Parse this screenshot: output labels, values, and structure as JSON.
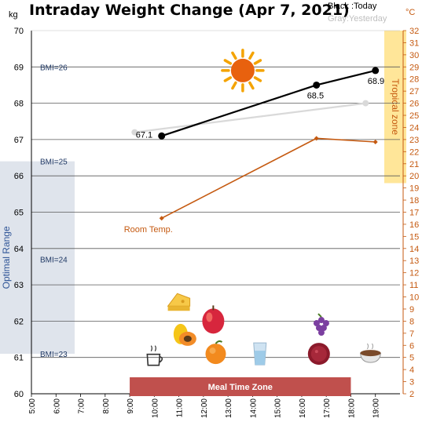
{
  "colors": {
    "today": "#000000",
    "yesterday": "#d9d9d9",
    "temperature": "#c55a11",
    "optimal_range": "#dfe4ec",
    "tropical_zone": "#ffe699",
    "meal_zone": "#c0504d",
    "bmi_text": "#1f3864"
  },
  "chart_data": {
    "type": "line",
    "title": "Intraday Weight Change (Apr 7, 2021)",
    "legend": [
      "Black :Today",
      "Gray:Yesterday"
    ],
    "legend_placement": "top-right",
    "y_unit": "kg",
    "y2_unit": "°C",
    "xlim": [
      5,
      20
    ],
    "ylim": [
      60,
      70
    ],
    "y2lim": [
      2,
      32
    ],
    "x_tick_labels": [
      "5:00",
      "6:00",
      "7:00",
      "8:00",
      "9:00",
      "10:00",
      "11:00",
      "12:00",
      "13:00",
      "14:00",
      "15:00",
      "16:00",
      "17:00",
      "18:00",
      "19:00"
    ],
    "y_ticks": [
      60,
      61,
      62,
      63,
      64,
      65,
      66,
      67,
      68,
      69,
      70
    ],
    "y2_ticks": [
      2,
      3,
      4,
      5,
      6,
      7,
      8,
      9,
      10,
      11,
      12,
      13,
      14,
      15,
      16,
      17,
      18,
      19,
      20,
      21,
      22,
      23,
      24,
      25,
      26,
      27,
      28,
      29,
      30,
      31,
      32
    ],
    "bmi_lines": [
      {
        "label": "BMI=26",
        "weight": 69.0
      },
      {
        "label": "BMI=25",
        "weight": 66.4
      },
      {
        "label": "BMI=24",
        "weight": 63.7
      },
      {
        "label": "BMI=23",
        "weight": 61.1
      }
    ],
    "series": [
      {
        "name": "Today",
        "axis": "left",
        "points": [
          {
            "x": 10.3,
            "y": 67.1,
            "label": "67.1"
          },
          {
            "x": 16.6,
            "y": 68.5,
            "label": "68.5"
          },
          {
            "x": 19.0,
            "y": 68.9,
            "label": "68.9"
          }
        ]
      },
      {
        "name": "Yesterday",
        "axis": "left",
        "points": [
          {
            "x": 9.2,
            "y": 67.2
          },
          {
            "x": 18.6,
            "y": 68.0
          }
        ]
      },
      {
        "name": "Room Temp.",
        "axis": "right",
        "points": [
          {
            "x": 10.3,
            "y": 16.5
          },
          {
            "x": 16.6,
            "y": 23.1
          },
          {
            "x": 19.0,
            "y": 22.8
          }
        ]
      }
    ],
    "zones": {
      "optimal_range": {
        "label": "Optimal Range",
        "from": 61.1,
        "to": 66.4
      },
      "tropical_zone": {
        "label": "Tropical zone",
        "from": 19.4,
        "to": 32
      },
      "meal_time": {
        "label": "Meal Time Zone",
        "from": 9.0,
        "to": 18.0
      }
    },
    "icons": [
      {
        "name": "sun-icon",
        "x": 13.6,
        "y": 68.9
      },
      {
        "name": "cheese-icon",
        "x": 11.0,
        "y": 62.5
      },
      {
        "name": "papaya-icon",
        "x": 11.2,
        "y": 61.6
      },
      {
        "name": "apple-icon",
        "x": 12.4,
        "y": 62.0
      },
      {
        "name": "grapes-icon",
        "x": 16.8,
        "y": 61.9
      },
      {
        "name": "coffee-cup-icon",
        "x": 10.0,
        "y": 61.0
      },
      {
        "name": "orange-icon",
        "x": 12.5,
        "y": 61.1
      },
      {
        "name": "water-glass-icon",
        "x": 14.3,
        "y": 61.1
      },
      {
        "name": "berry-bowl-icon",
        "x": 16.7,
        "y": 61.1
      },
      {
        "name": "soup-bowl-icon",
        "x": 18.8,
        "y": 61.1
      }
    ]
  }
}
